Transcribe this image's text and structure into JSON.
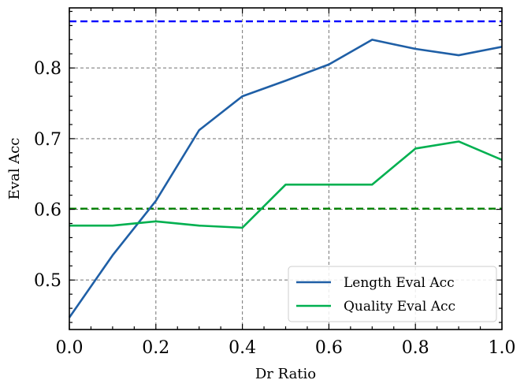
{
  "chart_data": {
    "type": "line",
    "title": "",
    "xlabel": "Dr Ratio",
    "ylabel": "Eval Acc",
    "xlim": [
      0.0,
      1.0
    ],
    "ylim": [
      0.43,
      0.885
    ],
    "grid": true,
    "legend_position": "bottom-right",
    "x_ticks": [
      0.0,
      0.2,
      0.4,
      0.6,
      0.8,
      1.0
    ],
    "x_tick_labels": [
      "0.0",
      "0.2",
      "0.4",
      "0.6",
      "0.8",
      "1.0"
    ],
    "y_ticks": [
      0.5,
      0.6,
      0.7,
      0.8
    ],
    "y_tick_labels": [
      "0.5",
      "0.6",
      "0.7",
      "0.8"
    ],
    "x": [
      0.0,
      0.1,
      0.2,
      0.3,
      0.4,
      0.5,
      0.6,
      0.7,
      0.8,
      0.9,
      1.0
    ],
    "series": [
      {
        "name": "Length Eval Acc",
        "color": "#1f5fa6",
        "values": [
          0.447,
          0.535,
          0.612,
          0.712,
          0.76,
          0.782,
          0.805,
          0.84,
          0.827,
          0.818,
          0.83
        ]
      },
      {
        "name": "Quality Eval Acc",
        "color": "#00b050",
        "values": [
          0.577,
          0.577,
          0.583,
          0.577,
          0.574,
          0.635,
          0.635,
          0.635,
          0.686,
          0.696,
          0.67
        ]
      }
    ],
    "reference_lines": [
      {
        "y": 0.866,
        "color": "#0000ff",
        "style": "dashed"
      },
      {
        "y": 0.601,
        "color": "#008000",
        "style": "dashed"
      }
    ]
  }
}
